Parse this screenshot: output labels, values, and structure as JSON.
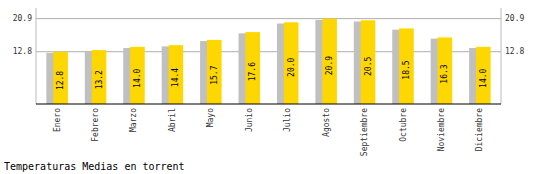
{
  "chart_data": {
    "type": "bar",
    "title": "Temperaturas Medias en torrent",
    "categories": [
      "Enero",
      "Febrero",
      "Marzo",
      "Abril",
      "Mayo",
      "Junio",
      "Julio",
      "Agosto",
      "Septiembre",
      "Octubre",
      "Noviembre",
      "Diciembre"
    ],
    "series": [
      {
        "color": "#C0C0C0",
        "values": [
          12.5,
          12.9,
          13.7,
          14.1,
          15.4,
          17.3,
          19.7,
          20.6,
          20.2,
          18.2,
          16.0,
          13.7
        ]
      },
      {
        "color": "#FFD700",
        "values": [
          12.8,
          13.2,
          14.0,
          14.4,
          15.7,
          17.6,
          20.0,
          20.9,
          20.5,
          18.5,
          16.3,
          14.0
        ],
        "value_labels": [
          "12.8",
          "13.2",
          "14.0",
          "14.4",
          "15.7",
          "17.6",
          "20.0",
          "20.9",
          "20.5",
          "18.5",
          "16.3",
          "14.0"
        ],
        "data_labels": true
      }
    ],
    "ylim": [
      0,
      23.5
    ],
    "yticks": [
      12.8,
      20.9
    ],
    "grid": true
  }
}
